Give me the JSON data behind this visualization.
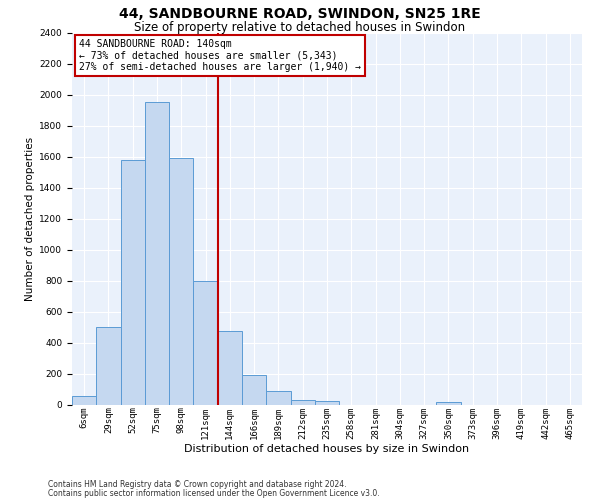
{
  "title": "44, SANDBOURNE ROAD, SWINDON, SN25 1RE",
  "subtitle": "Size of property relative to detached houses in Swindon",
  "xlabel": "Distribution of detached houses by size in Swindon",
  "ylabel": "Number of detached properties",
  "bar_labels": [
    "6sqm",
    "29sqm",
    "52sqm",
    "75sqm",
    "98sqm",
    "121sqm",
    "144sqm",
    "166sqm",
    "189sqm",
    "212sqm",
    "235sqm",
    "258sqm",
    "281sqm",
    "304sqm",
    "327sqm",
    "350sqm",
    "373sqm",
    "396sqm",
    "419sqm",
    "442sqm",
    "465sqm"
  ],
  "bar_heights": [
    60,
    500,
    1580,
    1950,
    1590,
    800,
    475,
    195,
    90,
    35,
    25,
    0,
    0,
    0,
    0,
    20,
    0,
    0,
    0,
    0,
    0
  ],
  "bar_color": "#c5d8f0",
  "bar_edge_color": "#5b9bd5",
  "vline_color": "#c00000",
  "vline_index": 6,
  "annotation_text": "44 SANDBOURNE ROAD: 140sqm\n← 73% of detached houses are smaller (5,343)\n27% of semi-detached houses are larger (1,940) →",
  "annotation_box_color": "#c00000",
  "ylim": [
    0,
    2400
  ],
  "yticks": [
    0,
    200,
    400,
    600,
    800,
    1000,
    1200,
    1400,
    1600,
    1800,
    2000,
    2200,
    2400
  ],
  "footnote1": "Contains HM Land Registry data © Crown copyright and database right 2024.",
  "footnote2": "Contains public sector information licensed under the Open Government Licence v3.0.",
  "plot_bg_color": "#eaf1fb",
  "fig_bg_color": "#ffffff",
  "grid_color": "#ffffff",
  "title_fontsize": 10,
  "subtitle_fontsize": 8.5,
  "ylabel_fontsize": 7.5,
  "xlabel_fontsize": 8,
  "tick_fontsize": 6.5,
  "annotation_fontsize": 7,
  "footnote_fontsize": 5.5
}
